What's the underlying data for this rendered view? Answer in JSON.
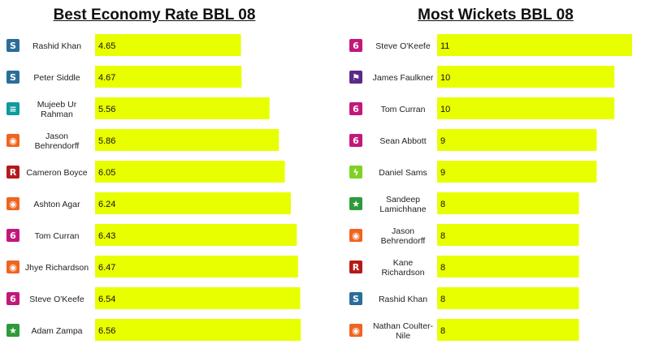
{
  "team_colors": {
    "strikers": "#2a6e9a",
    "sixers": "#c2187a",
    "heat": "#0f9aa0",
    "scorchers": "#ef6420",
    "renegades": "#b51a1a",
    "stars": "#2f9a3a",
    "hurricanes": "#5b2a86",
    "thunder": "#7ed321"
  },
  "chart_data": [
    {
      "type": "bar",
      "orientation": "horizontal",
      "title": "Best Economy Rate BBL 08",
      "xlim": [
        0,
        7.2
      ],
      "bar_color": "#e8ff00",
      "categories": [
        [
          "Rashid Khan"
        ],
        [
          "Peter Siddle"
        ],
        [
          "Mujeeb Ur",
          "Rahman"
        ],
        [
          "Jason",
          "Behrendorff"
        ],
        [
          "Cameron Boyce"
        ],
        [
          "Ashton Agar"
        ],
        [
          "Tom Curran"
        ],
        [
          "Jhye Richardson"
        ],
        [
          "Steve O'Keefe"
        ],
        [
          "Adam Zampa"
        ]
      ],
      "values": [
        4.65,
        4.67,
        5.56,
        5.86,
        6.05,
        6.24,
        6.43,
        6.47,
        6.54,
        6.56
      ],
      "value_labels": [
        "4.65",
        "4.67",
        "5.56",
        "5.86",
        "6.05",
        "6.24",
        "6.43",
        "6.47",
        "6.54",
        "6.56"
      ],
      "team_icons": [
        "strikers",
        "strikers",
        "heat",
        "scorchers",
        "renegades",
        "scorchers",
        "sixers",
        "scorchers",
        "sixers",
        "stars"
      ]
    },
    {
      "type": "bar",
      "orientation": "horizontal",
      "title": "Most Wickets BBL 08",
      "xlim": [
        0,
        11
      ],
      "bar_color": "#e8ff00",
      "categories": [
        [
          "Steve O'Keefe"
        ],
        [
          "James Faulkner"
        ],
        [
          "Tom Curran"
        ],
        [
          "Sean Abbott"
        ],
        [
          "Daniel Sams"
        ],
        [
          "Sandeep",
          "Lamichhane"
        ],
        [
          "Jason",
          "Behrendorff"
        ],
        [
          "Kane",
          "Richardson"
        ],
        [
          "Rashid Khan"
        ],
        [
          "Nathan Coulter-",
          "Nile"
        ]
      ],
      "values": [
        11,
        10,
        10,
        9,
        9,
        8,
        8,
        8,
        8,
        8
      ],
      "value_labels": [
        "11",
        "10",
        "10",
        "9",
        "9",
        "8",
        "8",
        "8",
        "8",
        "8"
      ],
      "team_icons": [
        "sixers",
        "hurricanes",
        "sixers",
        "sixers",
        "thunder",
        "stars",
        "scorchers",
        "renegades",
        "strikers",
        "scorchers"
      ]
    }
  ]
}
